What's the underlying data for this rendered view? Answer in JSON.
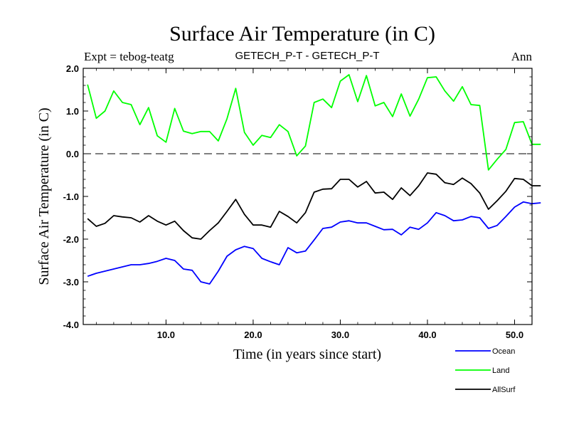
{
  "chart_data": {
    "type": "line",
    "title": "Surface Air Temperature (in C)",
    "subtitle_left": "Expt = tebog-teatg",
    "subtitle_center": "GETECH_P-T - GETECH_P-T",
    "subtitle_right": "Ann",
    "xlabel": "Time (in years since start)",
    "ylabel": "Surface Air Temperature (in C)",
    "xlim": [
      0.5,
      52
    ],
    "ylim": [
      -4.0,
      2.0
    ],
    "x_tick_labels": [
      "10.0",
      "20.0",
      "30.0",
      "40.0",
      "50.0"
    ],
    "x_tick_values": [
      10,
      20,
      30,
      40,
      50
    ],
    "y_tick_labels": [
      "2.0",
      "1.0",
      "0.0",
      "-1.0",
      "-2.0",
      "-3.0",
      "-4.0"
    ],
    "y_tick_values": [
      2,
      1,
      0,
      -1,
      -2,
      -3,
      -4
    ],
    "reference_line": 0.0,
    "series": [
      {
        "name": "Ocean",
        "color": "#0000ff",
        "values": [
          -2.87,
          -2.8,
          -2.75,
          -2.7,
          -2.65,
          -2.6,
          -2.6,
          -2.57,
          -2.52,
          -2.45,
          -2.5,
          -2.7,
          -2.73,
          -3.0,
          -3.05,
          -2.75,
          -2.4,
          -2.25,
          -2.17,
          -2.22,
          -2.45,
          -2.53,
          -2.6,
          -2.2,
          -2.32,
          -2.28,
          -2.02,
          -1.75,
          -1.72,
          -1.6,
          -1.57,
          -1.62,
          -1.62,
          -1.7,
          -1.78,
          -1.77,
          -1.9,
          -1.72,
          -1.77,
          -1.62,
          -1.38,
          -1.45,
          -1.57,
          -1.55,
          -1.47,
          -1.5,
          -1.75,
          -1.68,
          -1.47,
          -1.25,
          -1.13,
          -1.17,
          -1.15
        ]
      },
      {
        "name": "Land",
        "color": "#00ff00",
        "values": [
          1.62,
          0.83,
          1.0,
          1.47,
          1.2,
          1.15,
          0.68,
          1.08,
          0.42,
          0.27,
          1.06,
          0.53,
          0.47,
          0.52,
          0.52,
          0.3,
          0.82,
          1.53,
          0.5,
          0.2,
          0.43,
          0.38,
          0.68,
          0.52,
          -0.05,
          0.18,
          1.2,
          1.28,
          1.08,
          1.7,
          1.85,
          1.22,
          1.83,
          1.12,
          1.2,
          0.87,
          1.4,
          0.88,
          1.28,
          1.78,
          1.8,
          1.47,
          1.23,
          1.57,
          1.15,
          1.13,
          -0.38,
          -0.13,
          0.1,
          0.73,
          0.75,
          0.22,
          0.22
        ]
      },
      {
        "name": "AllSurf",
        "color": "#000000",
        "values": [
          -1.52,
          -1.7,
          -1.63,
          -1.45,
          -1.48,
          -1.5,
          -1.6,
          -1.45,
          -1.58,
          -1.67,
          -1.58,
          -1.8,
          -1.97,
          -2.0,
          -1.8,
          -1.62,
          -1.35,
          -1.07,
          -1.42,
          -1.67,
          -1.67,
          -1.72,
          -1.35,
          -1.47,
          -1.62,
          -1.38,
          -0.9,
          -0.83,
          -0.82,
          -0.6,
          -0.6,
          -0.78,
          -0.65,
          -0.92,
          -0.9,
          -1.07,
          -0.8,
          -0.98,
          -0.75,
          -0.45,
          -0.48,
          -0.68,
          -0.72,
          -0.57,
          -0.7,
          -0.92,
          -1.3,
          -1.1,
          -0.88,
          -0.58,
          -0.6,
          -0.75,
          -0.75
        ]
      }
    ],
    "legend": [
      "Ocean",
      "Land",
      "AllSurf"
    ],
    "legend_placement": "bottom-right"
  }
}
